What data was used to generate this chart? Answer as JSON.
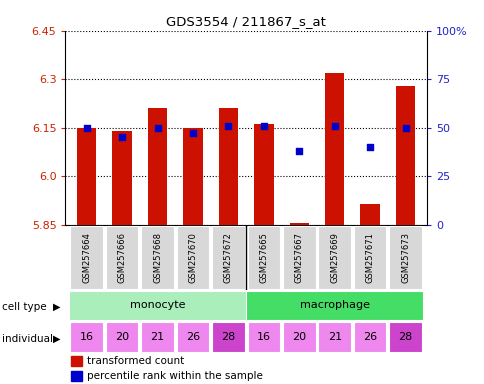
{
  "title": "GDS3554 / 211867_s_at",
  "samples": [
    "GSM257664",
    "GSM257666",
    "GSM257668",
    "GSM257670",
    "GSM257672",
    "GSM257665",
    "GSM257667",
    "GSM257669",
    "GSM257671",
    "GSM257673"
  ],
  "bar_values": [
    6.15,
    6.14,
    6.21,
    6.15,
    6.21,
    6.16,
    5.855,
    6.32,
    5.915,
    6.28
  ],
  "dot_values": [
    50,
    45,
    50,
    47,
    51,
    51,
    38,
    51,
    40,
    50
  ],
  "ymin": 5.85,
  "ymax": 6.45,
  "y_ticks": [
    5.85,
    6.0,
    6.15,
    6.3,
    6.45
  ],
  "y2_ticks": [
    0,
    25,
    50,
    75,
    100
  ],
  "cell_types": [
    "monocyte",
    "macrophage"
  ],
  "individuals": [
    16,
    20,
    21,
    26,
    28,
    16,
    20,
    21,
    26,
    28
  ],
  "individual_colors": [
    "#ee88ee",
    "#ee88ee",
    "#ee88ee",
    "#ee88ee",
    "#cc44cc",
    "#ee88ee",
    "#ee88ee",
    "#ee88ee",
    "#ee88ee",
    "#cc44cc"
  ],
  "bar_color": "#cc1100",
  "dot_color": "#0000cc",
  "monocyte_color": "#aaeebb",
  "macrophage_color": "#44dd66",
  "tick_label_color": "#cc2200",
  "right_tick_color": "#2222cc",
  "grid_color": "#000000",
  "legend_bar_label": "transformed count",
  "legend_dot_label": "percentile rank within the sample"
}
